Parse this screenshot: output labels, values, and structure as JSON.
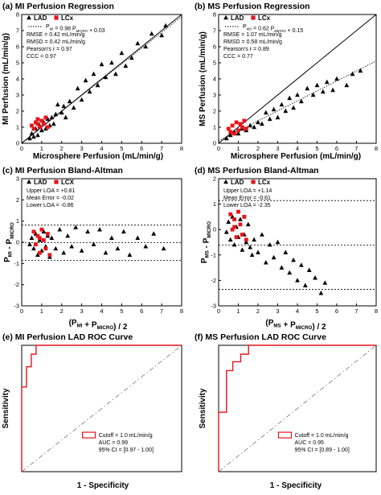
{
  "chart_data": [
    {
      "panel": "(a)",
      "type": "scatter",
      "title": "MI Perfusion Regression",
      "xlabel": "Microsphere Perfusion (mL/min/g)",
      "ylabel": "MI Perfusion (mL/min/g)",
      "xlim": [
        0,
        8
      ],
      "ylim": [
        0,
        8
      ],
      "xticks": [
        "0",
        "1",
        "2",
        "3",
        "4",
        "5",
        "6",
        "7",
        "8"
      ],
      "yticks": [
        "0",
        "1",
        "2",
        "3",
        "4",
        "5",
        "6",
        "7",
        "8"
      ],
      "legend": [
        "LAD",
        "LCx"
      ],
      "fit_label": "P_MI = 0.98 P_MICRO + 0.03",
      "fit": {
        "slope": 0.98,
        "intercept": 0.03
      },
      "stats": [
        "RMSE = 0.42 mL/min/g",
        "RMSD = 0.42 mL/min/g",
        "Pearson's r = 0.97",
        "CCC = 0.97"
      ],
      "series": [
        {
          "name": "LAD",
          "points": [
            [
              0.4,
              0.3
            ],
            [
              0.5,
              0.6
            ],
            [
              0.6,
              0.4
            ],
            [
              0.7,
              0.9
            ],
            [
              0.8,
              0.5
            ],
            [
              0.9,
              1.1
            ],
            [
              1.0,
              0.8
            ],
            [
              1.1,
              1.3
            ],
            [
              1.2,
              0.9
            ],
            [
              1.3,
              1.5
            ],
            [
              1.4,
              1.1
            ],
            [
              1.5,
              1.6
            ],
            [
              1.6,
              1.2
            ],
            [
              1.7,
              1.8
            ],
            [
              1.8,
              2.4
            ],
            [
              2.0,
              1.9
            ],
            [
              2.1,
              2.3
            ],
            [
              2.2,
              1.6
            ],
            [
              2.4,
              2.6
            ],
            [
              2.6,
              2.2
            ],
            [
              2.8,
              3.4
            ],
            [
              3.0,
              2.7
            ],
            [
              3.2,
              3.9
            ],
            [
              3.4,
              3.2
            ],
            [
              3.6,
              4.3
            ],
            [
              3.8,
              3.6
            ],
            [
              4.0,
              4.9
            ],
            [
              4.2,
              4.1
            ],
            [
              4.5,
              5.0
            ],
            [
              4.7,
              4.3
            ],
            [
              5.0,
              5.6
            ],
            [
              5.2,
              4.8
            ],
            [
              5.5,
              5.3
            ],
            [
              5.8,
              6.2
            ],
            [
              6.2,
              6.0
            ],
            [
              6.5,
              6.8
            ],
            [
              7.0,
              6.7
            ],
            [
              7.2,
              7.3
            ]
          ]
        },
        {
          "name": "LCx",
          "points": [
            [
              0.5,
              1.1
            ],
            [
              0.7,
              1.3
            ],
            [
              0.8,
              1.5
            ],
            [
              0.9,
              1.0
            ],
            [
              1.0,
              1.4
            ],
            [
              1.1,
              1.2
            ],
            [
              1.2,
              1.6
            ],
            [
              0.6,
              0.9
            ],
            [
              0.8,
              1.2
            ],
            [
              1.3,
              1.0
            ]
          ]
        }
      ]
    },
    {
      "panel": "(b)",
      "type": "scatter",
      "title": "MS Perfusion Regression",
      "xlabel": "Microsphere Perfusion (mL/min/g)",
      "ylabel": "MS Perfusion (mL/min/g)",
      "xlim": [
        0,
        8
      ],
      "ylim": [
        0,
        8
      ],
      "xticks": [
        "0",
        "1",
        "2",
        "3",
        "4",
        "5",
        "6",
        "7",
        "8"
      ],
      "yticks": [
        "0",
        "1",
        "2",
        "3",
        "4",
        "5",
        "6",
        "7",
        "8"
      ],
      "legend": [
        "LAD",
        "LCx"
      ],
      "fit_label": "P_MS = 0.62 P_MICRO + 0.15",
      "fit": {
        "slope": 0.62,
        "intercept": 0.15
      },
      "stats": [
        "RMSE = 1.07 mL/min/g",
        "RMSD = 0.58 mL/min/g",
        "Pearson's r = 0.89",
        "CCC = 0.77"
      ],
      "series": [
        {
          "name": "LAD",
          "points": [
            [
              0.4,
              0.3
            ],
            [
              0.6,
              0.5
            ],
            [
              0.8,
              0.7
            ],
            [
              1.0,
              0.6
            ],
            [
              1.2,
              0.9
            ],
            [
              1.4,
              0.8
            ],
            [
              1.6,
              1.1
            ],
            [
              1.8,
              1.0
            ],
            [
              2.0,
              1.3
            ],
            [
              2.2,
              1.2
            ],
            [
              2.4,
              1.9
            ],
            [
              2.6,
              1.5
            ],
            [
              2.8,
              2.1
            ],
            [
              3.0,
              1.6
            ],
            [
              3.2,
              2.4
            ],
            [
              3.4,
              2.0
            ],
            [
              3.6,
              2.8
            ],
            [
              3.8,
              2.2
            ],
            [
              4.0,
              3.0
            ],
            [
              4.2,
              2.6
            ],
            [
              4.5,
              3.4
            ],
            [
              4.8,
              3.0
            ],
            [
              5.0,
              3.6
            ],
            [
              5.3,
              3.2
            ],
            [
              5.5,
              3.8
            ],
            [
              5.8,
              3.3
            ],
            [
              6.0,
              4.0
            ],
            [
              6.5,
              3.6
            ],
            [
              6.8,
              4.3
            ],
            [
              7.2,
              4.5
            ]
          ]
        },
        {
          "name": "LCx",
          "points": [
            [
              0.5,
              0.9
            ],
            [
              0.7,
              1.1
            ],
            [
              0.8,
              0.6
            ],
            [
              0.9,
              1.3
            ],
            [
              1.0,
              0.8
            ],
            [
              1.1,
              1.2
            ],
            [
              1.2,
              1.0
            ],
            [
              1.3,
              1.4
            ],
            [
              0.6,
              0.7
            ],
            [
              1.4,
              0.9
            ]
          ]
        }
      ]
    },
    {
      "panel": "(c)",
      "type": "scatter",
      "title": "MI Perfusion Bland-Altman",
      "xlabel": "(P_MI + P_MICRO) / 2",
      "ylabel": "P_MI - P_MICRO",
      "xlim": [
        0,
        8
      ],
      "ylim": [
        -3,
        3
      ],
      "xticks": [
        "0",
        "1",
        "2",
        "3",
        "4",
        "5",
        "6",
        "7",
        "8"
      ],
      "yticks": [
        "-3",
        "-2",
        "-1",
        "0",
        "1",
        "2",
        "3"
      ],
      "legend": [
        "LAD",
        "LCX"
      ],
      "stats": [
        "Upper LOA = +0.81",
        "Mean Error = -0.02",
        "Lower LOA = -0.86"
      ],
      "hlines": [
        0.81,
        -0.02,
        -0.86
      ],
      "series": [
        {
          "name": "LAD",
          "points": [
            [
              0.4,
              -0.1
            ],
            [
              0.5,
              0.2
            ],
            [
              0.6,
              -0.3
            ],
            [
              0.7,
              0.4
            ],
            [
              0.8,
              -0.6
            ],
            [
              0.9,
              0.1
            ],
            [
              1.0,
              -0.4
            ],
            [
              1.1,
              0.5
            ],
            [
              1.2,
              -0.2
            ],
            [
              1.3,
              0.3
            ],
            [
              1.4,
              -0.7
            ],
            [
              1.5,
              0.2
            ],
            [
              1.7,
              -0.3
            ],
            [
              1.9,
              0.6
            ],
            [
              2.1,
              -0.5
            ],
            [
              2.3,
              0.3
            ],
            [
              2.5,
              -0.2
            ],
            [
              2.7,
              0.7
            ],
            [
              3.0,
              -0.4
            ],
            [
              3.3,
              0.5
            ],
            [
              3.6,
              -0.1
            ],
            [
              3.9,
              0.6
            ],
            [
              4.2,
              -0.5
            ],
            [
              4.5,
              0.2
            ],
            [
              4.8,
              -0.3
            ],
            [
              5.1,
              0.5
            ],
            [
              5.4,
              -0.6
            ],
            [
              5.8,
              0.2
            ],
            [
              6.2,
              -0.2
            ],
            [
              6.6,
              0.4
            ],
            [
              7.1,
              -0.3
            ]
          ]
        },
        {
          "name": "LCX",
          "points": [
            [
              0.6,
              0.5
            ],
            [
              0.7,
              -0.1
            ],
            [
              0.8,
              0.3
            ],
            [
              0.9,
              -0.5
            ],
            [
              1.0,
              0.6
            ],
            [
              1.1,
              0.1
            ],
            [
              1.2,
              -0.3
            ],
            [
              1.3,
              0.4
            ],
            [
              1.4,
              -0.6
            ],
            [
              0.9,
              0.2
            ]
          ]
        }
      ]
    },
    {
      "panel": "(d)",
      "type": "scatter",
      "title": "MS Perfusion Bland-Altman",
      "xlabel": "(P_MS + P_MICRO) / 2",
      "ylabel": "P_MS - P_MICRO",
      "xlim": [
        0,
        8
      ],
      "ylim": [
        -3,
        2
      ],
      "xticks": [
        "0",
        "1",
        "2",
        "3",
        "4",
        "5",
        "6",
        "7",
        "8"
      ],
      "yticks": [
        "-3",
        "-2",
        "-1",
        "0",
        "1",
        "2"
      ],
      "legend": [
        "LAD",
        "LCx"
      ],
      "stats": [
        "Upper LOA = +1.14",
        "Mean Error = -0.61",
        "Lower LOA = -2.35"
      ],
      "hlines": [
        1.14,
        -0.61,
        -2.35
      ],
      "series": [
        {
          "name": "LAD",
          "points": [
            [
              0.4,
              -0.1
            ],
            [
              0.5,
              0.3
            ],
            [
              0.6,
              -0.4
            ],
            [
              0.7,
              0.5
            ],
            [
              0.8,
              -0.6
            ],
            [
              0.9,
              0.1
            ],
            [
              1.0,
              -0.3
            ],
            [
              1.1,
              0.4
            ],
            [
              1.2,
              -0.8
            ],
            [
              1.3,
              -0.2
            ],
            [
              1.4,
              -0.5
            ],
            [
              1.5,
              0.2
            ],
            [
              1.6,
              -0.7
            ],
            [
              1.7,
              -1.0
            ],
            [
              1.8,
              -0.4
            ],
            [
              2.0,
              -0.9
            ],
            [
              2.2,
              -0.2
            ],
            [
              2.4,
              -1.3
            ],
            [
              2.6,
              -0.6
            ],
            [
              2.8,
              -1.1
            ],
            [
              3.0,
              -0.5
            ],
            [
              3.2,
              -1.5
            ],
            [
              3.4,
              -0.9
            ],
            [
              3.6,
              -1.7
            ],
            [
              3.8,
              -1.2
            ],
            [
              4.0,
              -2.0
            ],
            [
              4.2,
              -1.4
            ],
            [
              4.4,
              -2.2
            ],
            [
              4.6,
              -1.6
            ],
            [
              4.9,
              -1.9
            ],
            [
              5.2,
              -2.5
            ],
            [
              5.4,
              -2.1
            ]
          ]
        },
        {
          "name": "LCx",
          "points": [
            [
              0.6,
              0.6
            ],
            [
              0.7,
              0.0
            ],
            [
              0.8,
              0.4
            ],
            [
              0.9,
              -0.3
            ],
            [
              1.0,
              0.7
            ],
            [
              1.1,
              0.2
            ],
            [
              1.2,
              -0.2
            ],
            [
              1.3,
              0.5
            ],
            [
              1.4,
              -0.4
            ],
            [
              0.8,
              0.1
            ]
          ]
        }
      ]
    },
    {
      "panel": "(e)",
      "type": "line",
      "title": "MI Perfusion LAD ROC Curve",
      "xlabel": "1 - Specificity",
      "ylabel": "Sensitivity",
      "xlim": [
        0,
        1
      ],
      "ylim": [
        0,
        1
      ],
      "legend": [
        "Cutoff = 1.0 mL/min/g"
      ],
      "stats": [
        "AUC = 0.99",
        "95% CI = [0.97 - 1.00]"
      ],
      "series": [
        {
          "name": "Cutoff = 1.0 mL/min/g",
          "points": [
            [
              0,
              0
            ],
            [
              0,
              0.67
            ],
            [
              0.03,
              0.67
            ],
            [
              0.03,
              0.83
            ],
            [
              0.06,
              0.83
            ],
            [
              0.06,
              0.93
            ],
            [
              0.09,
              0.93
            ],
            [
              0.09,
              1.0
            ],
            [
              1.0,
              1.0
            ]
          ]
        }
      ],
      "diagonal": true
    },
    {
      "panel": "(f)",
      "type": "line",
      "title": "MS Perfusion LAD ROC Curve",
      "xlabel": "1 - Specificity",
      "ylabel": "Sensitivity",
      "xlim": [
        0,
        1
      ],
      "ylim": [
        0,
        1
      ],
      "legend": [
        "Cutoff = 1.0 mL/min/g"
      ],
      "stats": [
        "AUC = 0.95",
        "95% CI = [0.89 - 1.00]"
      ],
      "series": [
        {
          "name": "Cutoff = 1.0 mL/min/g",
          "points": [
            [
              0,
              0
            ],
            [
              0,
              0.47
            ],
            [
              0.05,
              0.47
            ],
            [
              0.05,
              0.8
            ],
            [
              0.09,
              0.8
            ],
            [
              0.09,
              0.87
            ],
            [
              0.14,
              0.87
            ],
            [
              0.14,
              0.93
            ],
            [
              0.19,
              0.93
            ],
            [
              0.19,
              1.0
            ],
            [
              1.0,
              1.0
            ]
          ]
        }
      ],
      "diagonal": true
    }
  ]
}
